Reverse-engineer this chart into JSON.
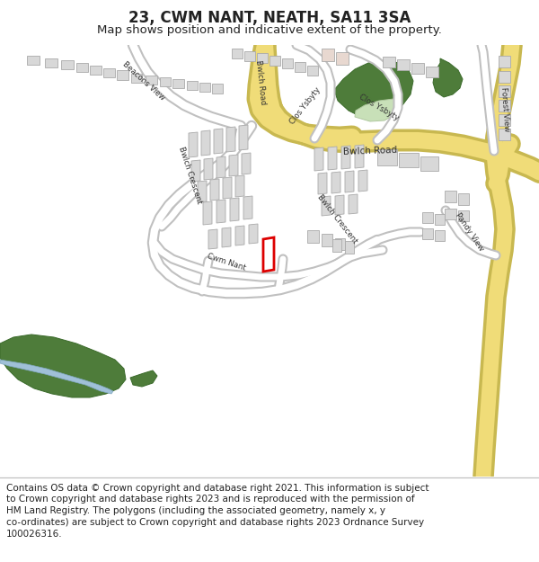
{
  "title": "23, CWM NANT, NEATH, SA11 3SA",
  "subtitle": "Map shows position and indicative extent of the property.",
  "footer_line1": "Contains OS data © Crown copyright and database right 2021. This information is subject",
  "footer_line2": "to Crown copyright and database rights 2023 and is reproduced with the permission of",
  "footer_line3": "HM Land Registry. The polygons (including the associated geometry, namely x, y",
  "footer_line4": "co-ordinates) are subject to Crown copyright and database rights 2023 Ordnance Survey",
  "footer_line5": "100026316.",
  "bg_color": "#ffffff",
  "map_bg": "#ffffff",
  "road_major_color": "#f0dc78",
  "road_major_outline": "#c8b850",
  "road_minor_color": "#ffffff",
  "road_outline_color": "#c0c0c0",
  "building_color": "#d8d8d8",
  "building_outline_color": "#aaaaaa",
  "green_dark": "#4e7c3a",
  "green_light": "#c8e0b8",
  "green_mid": "#6a9e50",
  "water_color": "#a0c0d8",
  "highlight_color": "#dd0000",
  "text_color": "#222222",
  "road_text_color": "#333333",
  "title_fontsize": 12,
  "subtitle_fontsize": 9.5,
  "footer_fontsize": 7.5,
  "label_fontsize": 6.2
}
